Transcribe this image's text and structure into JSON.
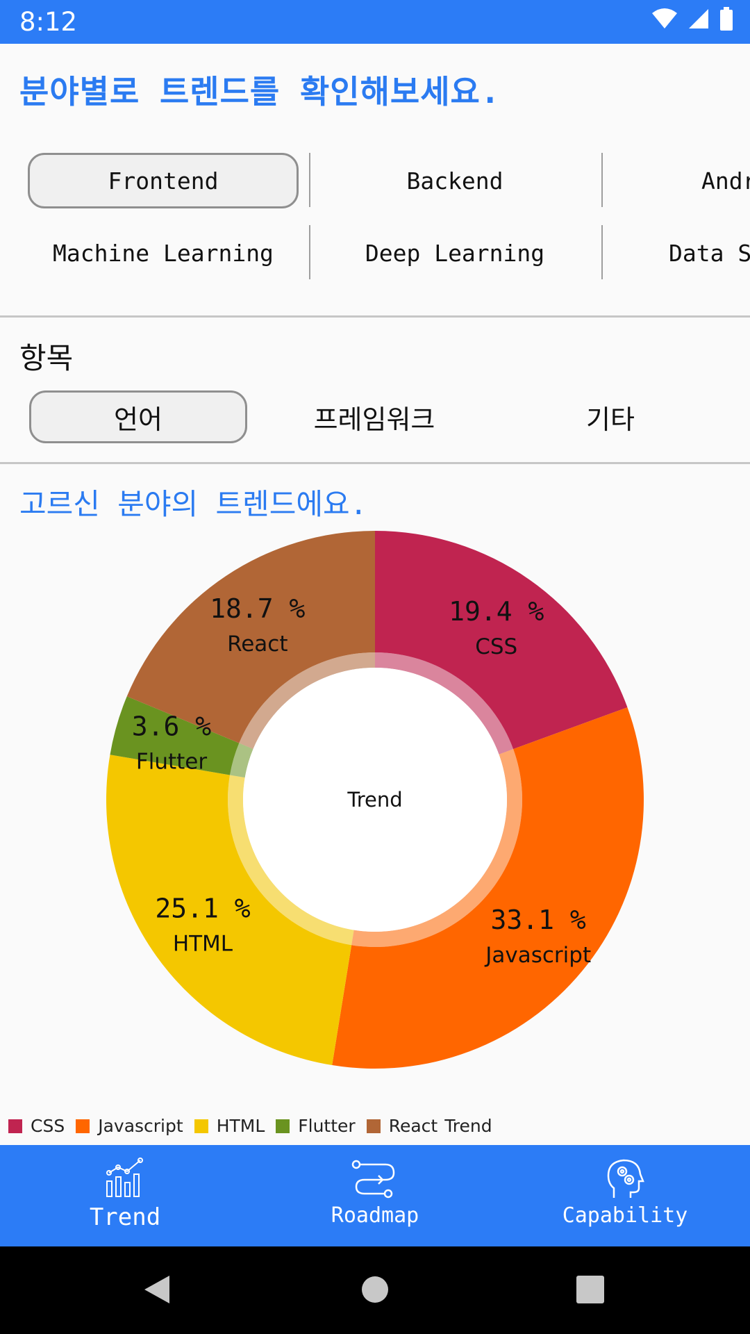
{
  "status_bar": {
    "time": "8:12"
  },
  "title": "분야별로 트렌드를 확인해보세요.",
  "categories": {
    "row1": [
      "Frontend",
      "Backend",
      "Andr"
    ],
    "row2": [
      "Machine Learning",
      "Deep Learning",
      "Data Sc"
    ],
    "selected": "Frontend"
  },
  "section": {
    "label": "항목",
    "tabs": [
      "언어",
      "프레임워크",
      "기타"
    ],
    "selected": "언어"
  },
  "chart_title": "고르신 분야의 트렌드에요.",
  "chart_data": {
    "type": "pie",
    "center_label": "Trend",
    "legend_suffix": "Trend",
    "slices": [
      {
        "label": "CSS",
        "value": 19.4,
        "value_text": "19.4 %",
        "color": "#c02450"
      },
      {
        "label": "Javascript",
        "value": 33.1,
        "value_text": "33.1 %",
        "color": "#ff6600"
      },
      {
        "label": "HTML",
        "value": 25.1,
        "value_text": "25.1 %",
        "color": "#f4c700"
      },
      {
        "label": "Flutter",
        "value": 3.6,
        "value_text": "3.6 %",
        "color": "#6a9320"
      },
      {
        "label": "React",
        "value": 18.7,
        "value_text": "18.7 %",
        "color": "#b16636"
      }
    ]
  },
  "bottom_nav": {
    "items": [
      {
        "label": "Trend",
        "icon": "chart-icon",
        "active": true
      },
      {
        "label": "Roadmap",
        "icon": "roadmap-icon",
        "active": false
      },
      {
        "label": "Capability",
        "icon": "brain-gears-icon",
        "active": false
      }
    ]
  }
}
